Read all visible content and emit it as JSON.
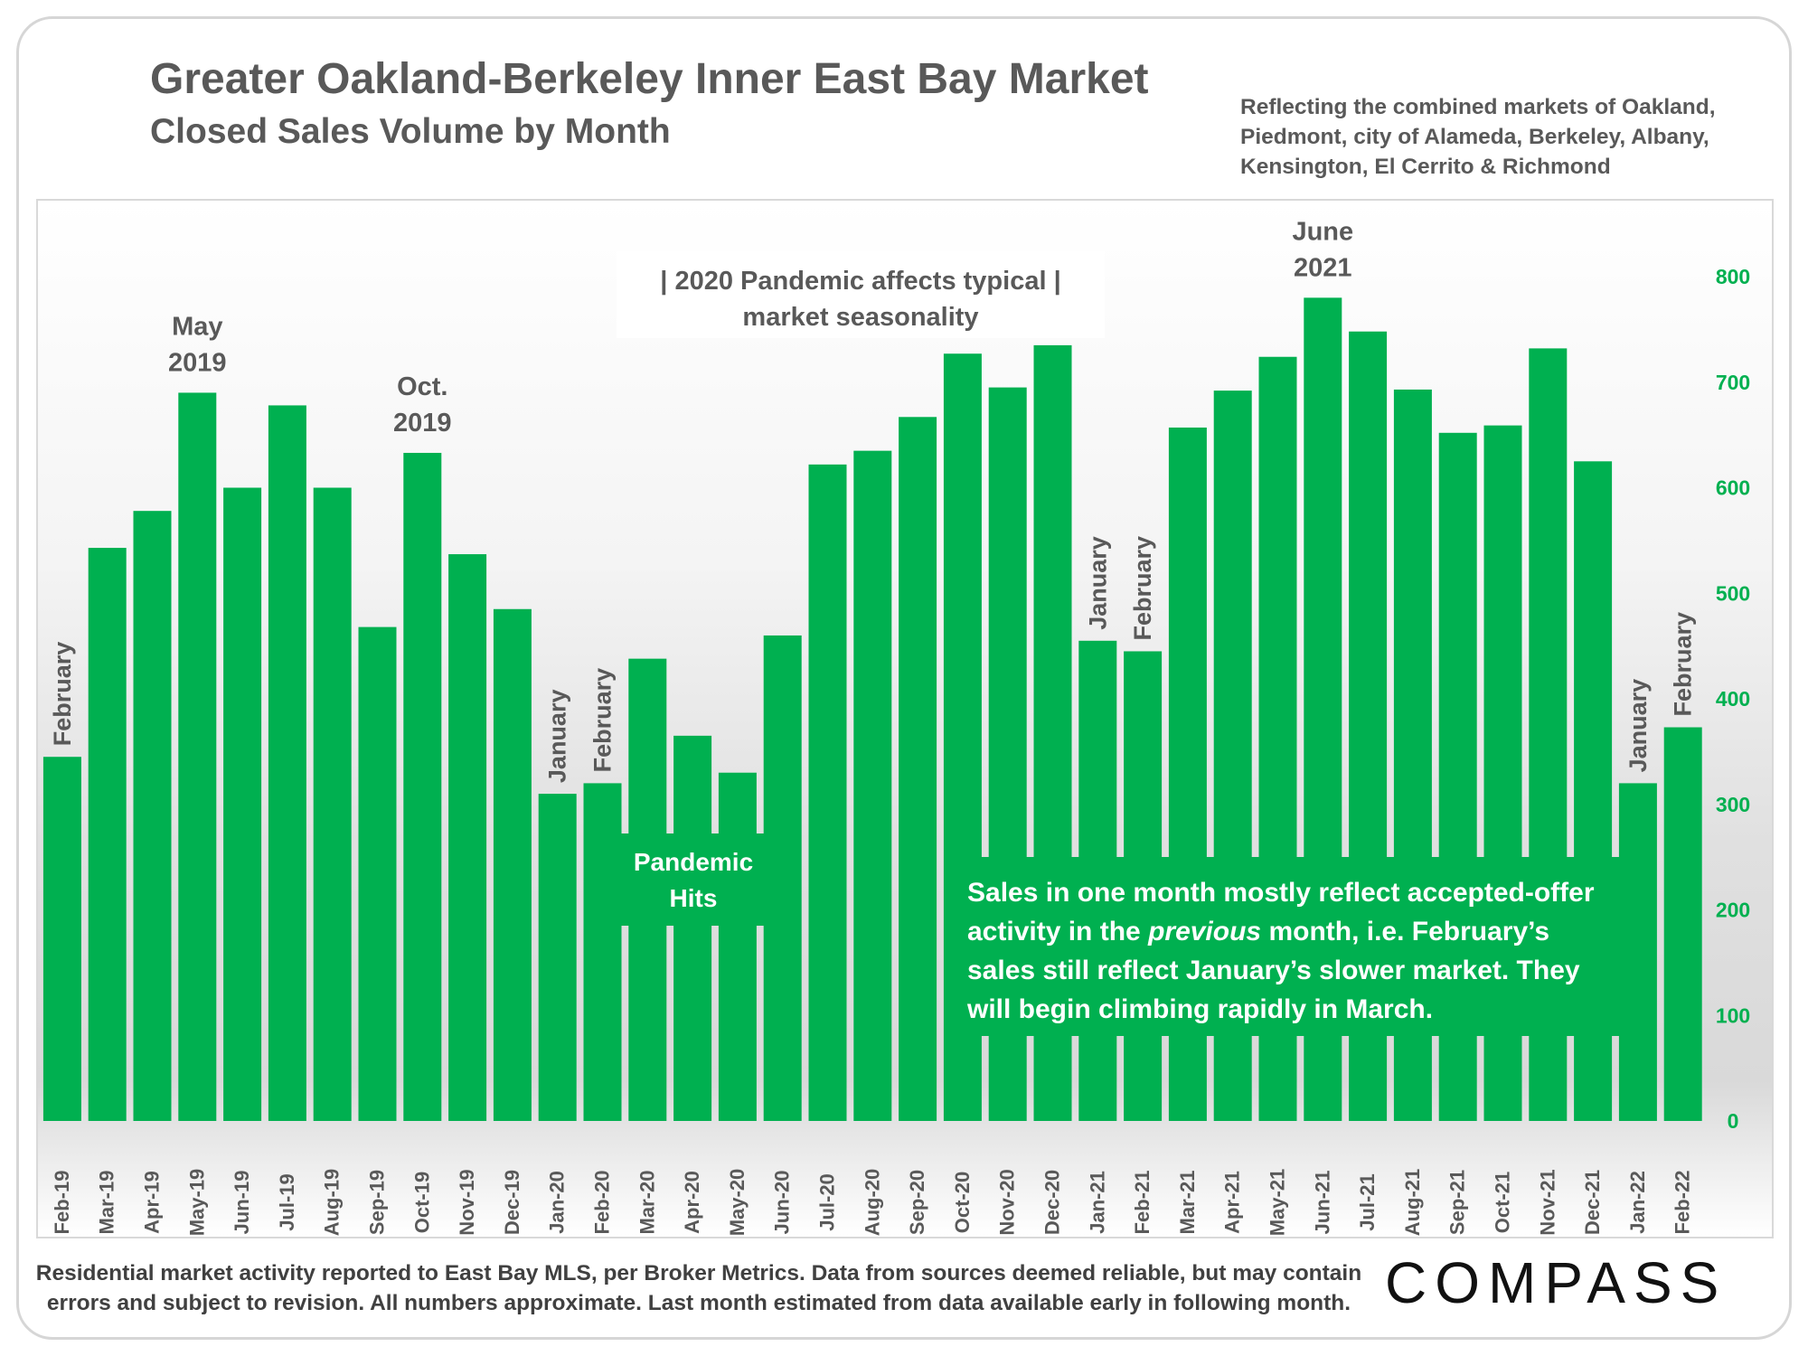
{
  "title": "Greater Oakland-Berkeley Inner East Bay Market",
  "subtitle": "Closed Sales Volume by Month",
  "note": "Reflecting the combined markets of Oakland, Piedmont, city of Alameda, Berkeley, Albany, Kensington, El Cerrito & Richmond",
  "footer": "Residential market activity reported to East Bay MLS, per Broker Metrics. Data from sources deemed reliable, but may contain errors and subject to revision. All numbers approximate. Last month estimated from data available early in following month.",
  "logo": "COMPASS",
  "colors": {
    "bar": "#00b050",
    "axis_text": "#00b050",
    "label_text": "#595959",
    "callout_text": "#ffffff"
  },
  "chart_data": {
    "type": "bar",
    "title": "Greater Oakland-Berkeley Inner East Bay Market",
    "subtitle": "Closed Sales Volume by Month",
    "categories": [
      "Feb-19",
      "Mar-19",
      "Apr-19",
      "May-19",
      "Jun-19",
      "Jul-19",
      "Aug-19",
      "Sep-19",
      "Oct-19",
      "Nov-19",
      "Dec-19",
      "Jan-20",
      "Feb-20",
      "Mar-20",
      "Apr-20",
      "May-20",
      "Jun-20",
      "Jul-20",
      "Aug-20",
      "Sep-20",
      "Oct-20",
      "Nov-20",
      "Dec-20",
      "Jan-21",
      "Feb-21",
      "Mar-21",
      "Apr-21",
      "May-21",
      "Jun-21",
      "Jul-21",
      "Aug-21",
      "Sep-21",
      "Oct-21",
      "Nov-21",
      "Dec-21",
      "Jan-22",
      "Feb-22"
    ],
    "values": [
      345,
      543,
      578,
      690,
      600,
      678,
      600,
      468,
      633,
      537,
      485,
      310,
      320,
      438,
      365,
      330,
      460,
      622,
      635,
      667,
      727,
      695,
      735,
      455,
      445,
      657,
      692,
      724,
      780,
      748,
      693,
      652,
      659,
      732,
      625,
      320,
      373
    ],
    "ylim": [
      0,
      800
    ],
    "yticks": [
      0,
      100,
      200,
      300,
      400,
      500,
      600,
      700,
      800
    ],
    "y_axis_position": "right",
    "grid": false,
    "legend": "none",
    "bar_labels": [
      {
        "index": 0,
        "text": "February"
      },
      {
        "index": 11,
        "text": "January"
      },
      {
        "index": 12,
        "text": "February"
      },
      {
        "index": 23,
        "text": "January"
      },
      {
        "index": 24,
        "text": "February"
      },
      {
        "index": 35,
        "text": "January"
      },
      {
        "index": 36,
        "text": "February"
      }
    ],
    "annotations": [
      {
        "index": 3,
        "lines": [
          "May",
          "2019"
        ]
      },
      {
        "index": 8,
        "lines": [
          "Oct.",
          "2019"
        ]
      },
      {
        "index": 28,
        "lines": [
          "June",
          "2021"
        ]
      }
    ],
    "pandemic_note": [
      "| 2020 Pandemic affects typical |",
      "market seasonality"
    ],
    "pandemic_hits": [
      "Pandemic",
      "Hits"
    ],
    "callout": [
      {
        "text": "Sales in one month mostly reflect accepted-offer"
      },
      {
        "text": "activity in the previous month, i.e. February’s",
        "italic_word": "previous"
      },
      {
        "text": "sales still reflect January’s slower market. They"
      },
      {
        "text": "will begin climbing rapidly in March."
      }
    ]
  }
}
